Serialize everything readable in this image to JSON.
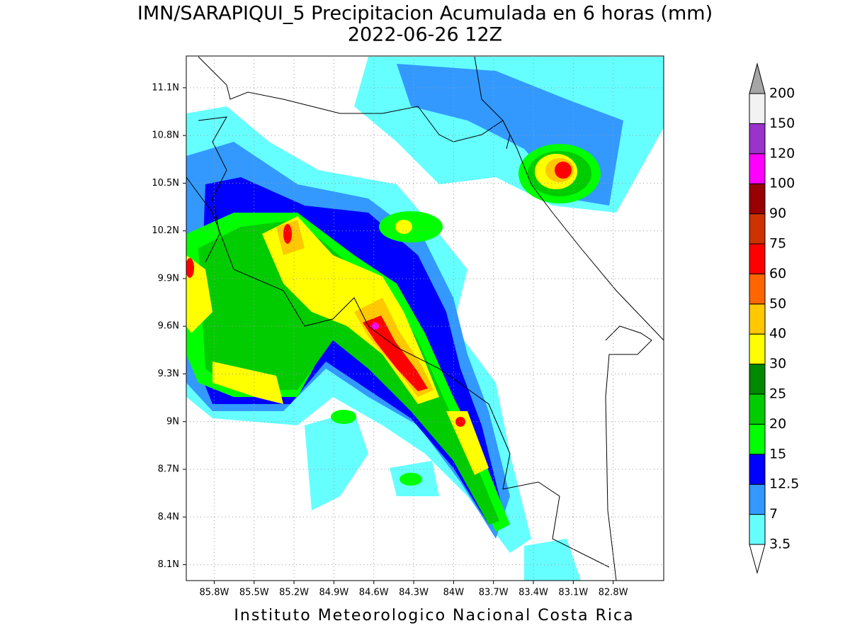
{
  "title": "IMN/SARAPIQUI_5 Precipitacion Acumulada en 6 horas (mm)",
  "subtitle": "2022-06-26 12Z",
  "map": {
    "lon_range": [
      -86.01,
      -82.42
    ],
    "lat_range": [
      8.0,
      11.3
    ],
    "grid": true,
    "lat_ticks": [
      {
        "value": 11.1,
        "label": "11.1N"
      },
      {
        "value": 10.8,
        "label": "10.8N"
      },
      {
        "value": 10.5,
        "label": "10.5N"
      },
      {
        "value": 10.2,
        "label": "10.2N"
      },
      {
        "value": 9.9,
        "label": "9.9N"
      },
      {
        "value": 9.6,
        "label": "9.6N"
      },
      {
        "value": 9.3,
        "label": "9.3N"
      },
      {
        "value": 9,
        "label": "9N"
      },
      {
        "value": 8.7,
        "label": "8.7N"
      },
      {
        "value": 8.4,
        "label": "8.4N"
      },
      {
        "value": 8.1,
        "label": "8.1N"
      }
    ],
    "lon_ticks": [
      {
        "value": -85.8,
        "label": "85.8W"
      },
      {
        "value": -85.5,
        "label": "85.5W"
      },
      {
        "value": -85.2,
        "label": "85.2W"
      },
      {
        "value": -84.9,
        "label": "84.9W"
      },
      {
        "value": -84.6,
        "label": "84.6W"
      },
      {
        "value": -84.3,
        "label": "84.3W"
      },
      {
        "value": -84,
        "label": "84W"
      },
      {
        "value": -83.7,
        "label": "83.7W"
      },
      {
        "value": -83.4,
        "label": "83.4W"
      },
      {
        "value": -83.1,
        "label": "83.1W"
      },
      {
        "value": -82.8,
        "label": "82.8W"
      }
    ]
  },
  "colorbar": {
    "levels": [
      3.5,
      7,
      12.5,
      15,
      20,
      25,
      30,
      40,
      50,
      60,
      75,
      90,
      100,
      120,
      150,
      200
    ],
    "colors": [
      "#66ffff",
      "#3399ff",
      "#0000ff",
      "#00ff00",
      "#00cc00",
      "#008800",
      "#ffff00",
      "#ffc800",
      "#ff6600",
      "#ff0000",
      "#cc3300",
      "#990000",
      "#ff00ff",
      "#9933cc",
      "#f2f2f2"
    ],
    "below_color": "#ffffff",
    "above_color": "#a6a6a6"
  },
  "footer": "Instituto Meteorologico Nacional Costa Rica"
}
